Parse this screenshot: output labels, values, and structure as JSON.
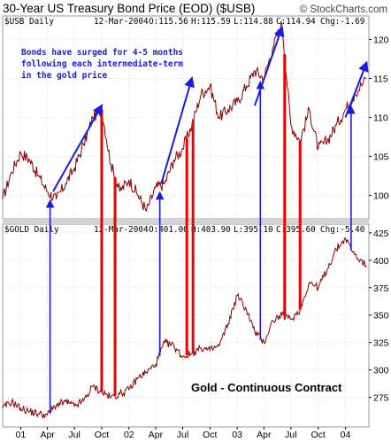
{
  "header": {
    "title": "30-Year US Treasury Bond Price (EOD) ($USB)",
    "watermark": "© StockCharts.com"
  },
  "top_panel": {
    "symbol": "$USB Daily",
    "date": "12-Mar-2004",
    "open_label": "O:115.56",
    "high_label": "H:115.59",
    "low_label": "L:114.88",
    "close_label": "C:114.94",
    "chg_label": "Chg:-1.69",
    "annotation_lines": [
      "Bonds have surged for 4-5 months",
      "following each intermediate-term",
      "in the gold price"
    ]
  },
  "bottom_panel": {
    "symbol": "$GOLD Daily",
    "date": "12-Mar-2004",
    "open_label": "O:401.00",
    "high_label": "H:403.90",
    "low_label": "L:395.10",
    "close_label": "C:395.60",
    "chg_label": "Chg:-5.40",
    "caption": "Gold - Continuous Contract"
  },
  "colors": {
    "price_line": "#8b0000",
    "red_marker": "#ee0000",
    "blue_marker": "#1a1ae6",
    "annotation_text": "#1a1ae6",
    "grid": "#c8c8c8",
    "divider": "#9a9a9a"
  },
  "chart_data": [
    {
      "type": "line",
      "title": "30-Year US Treasury Bond Price (EOD) ($USB)",
      "series_name": "$USB Daily",
      "ylim": [
        97,
        123
      ],
      "y_ticks": [
        100,
        105,
        110,
        115,
        120
      ],
      "x_axis": "date",
      "x_ticks": [
        "01",
        "Apr",
        "Jul",
        "Oct",
        "02",
        "Apr",
        "Jul",
        "Oct",
        "03",
        "Apr",
        "Jul",
        "Oct",
        "04"
      ],
      "x": [
        "2000-11-01",
        "2000-12-01",
        "2001-01-01",
        "2001-02-01",
        "2001-03-01",
        "2001-04-01",
        "2001-05-01",
        "2001-06-01",
        "2001-07-01",
        "2001-08-01",
        "2001-09-01",
        "2001-10-01",
        "2001-11-01",
        "2001-12-01",
        "2002-01-01",
        "2002-02-01",
        "2002-03-01",
        "2002-04-01",
        "2002-05-01",
        "2002-06-01",
        "2002-07-01",
        "2002-08-01",
        "2002-09-01",
        "2002-10-01",
        "2002-11-01",
        "2002-12-01",
        "2003-01-01",
        "2003-02-01",
        "2003-03-01",
        "2003-04-01",
        "2003-05-01",
        "2003-06-01",
        "2003-07-01",
        "2003-08-01",
        "2003-09-01",
        "2003-10-01",
        "2003-11-01",
        "2003-12-01",
        "2004-01-01",
        "2004-02-01",
        "2004-03-12"
      ],
      "values": [
        99.5,
        103,
        105.5,
        104.5,
        102.5,
        100.5,
        99.5,
        101.5,
        103.5,
        106.5,
        110,
        111,
        104,
        100.5,
        102,
        100,
        98,
        101,
        101.5,
        104.5,
        106,
        109,
        113,
        114,
        110,
        111,
        112,
        114,
        116,
        115,
        119,
        122,
        109,
        107,
        111,
        106,
        107,
        109,
        111,
        113,
        115
      ]
    },
    {
      "type": "line",
      "title": "",
      "series_name": "$GOLD Daily",
      "ylim": [
        248,
        433
      ],
      "y_ticks": [
        275,
        300,
        325,
        350,
        375,
        400,
        425
      ],
      "x_axis": "date",
      "x_ticks": [
        "01",
        "Apr",
        "Jul",
        "Oct",
        "02",
        "Apr",
        "Jul",
        "Oct",
        "03",
        "Apr",
        "Jul",
        "Oct",
        "04"
      ],
      "x": [
        "2000-11-01",
        "2000-12-01",
        "2001-01-01",
        "2001-02-01",
        "2001-03-01",
        "2001-04-01",
        "2001-05-01",
        "2001-06-01",
        "2001-07-01",
        "2001-08-01",
        "2001-09-01",
        "2001-10-01",
        "2001-11-01",
        "2001-12-01",
        "2002-01-01",
        "2002-02-01",
        "2002-03-01",
        "2002-04-01",
        "2002-05-01",
        "2002-06-01",
        "2002-07-01",
        "2002-08-01",
        "2002-09-01",
        "2002-10-01",
        "2002-11-01",
        "2002-12-01",
        "2003-01-01",
        "2003-02-01",
        "2003-03-01",
        "2003-04-01",
        "2003-05-01",
        "2003-06-01",
        "2003-07-01",
        "2003-08-01",
        "2003-09-01",
        "2003-10-01",
        "2003-11-01",
        "2003-12-01",
        "2004-01-01",
        "2004-02-01",
        "2004-03-12"
      ],
      "values": [
        265,
        271,
        265,
        262,
        260,
        259,
        268,
        271,
        267,
        272,
        285,
        280,
        275,
        278,
        282,
        293,
        298,
        305,
        325,
        322,
        312,
        315,
        320,
        318,
        322,
        342,
        368,
        355,
        335,
        325,
        345,
        350,
        346,
        355,
        380,
        375,
        392,
        410,
        420,
        405,
        395
      ]
    }
  ],
  "red_marker_dates": [
    "2001-10-01",
    "2001-11-15",
    "2002-07-15",
    "2002-08-05",
    "2003-06-10",
    "2003-08-01"
  ],
  "blue_marker_dates": [
    "2001-04-10",
    "2002-04-15",
    "2003-03-20",
    "2004-01-20"
  ],
  "trend_arrows": [
    {
      "from": [
        "2001-04-20",
        100.5
      ],
      "to": [
        "2001-10-01",
        111.5
      ]
    },
    {
      "from": [
        "2002-04-20",
        101.5
      ],
      "to": [
        "2002-08-01",
        115
      ]
    },
    {
      "from": [
        "2003-03-01",
        111.5
      ],
      "to": [
        "2003-06-01",
        121.5
      ]
    },
    {
      "from": [
        "2004-01-01",
        110
      ],
      "to": [
        "2004-03-12",
        117
      ]
    }
  ]
}
